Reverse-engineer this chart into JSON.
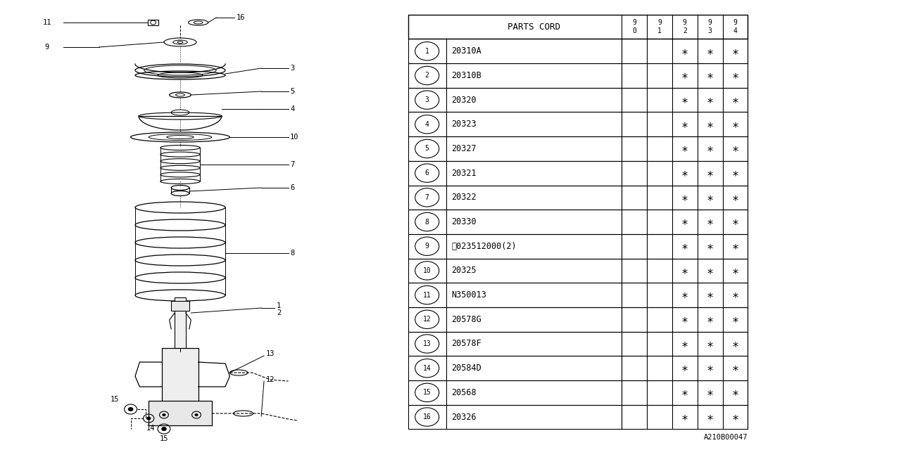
{
  "background_color": "#ffffff",
  "table_header": "PARTS CORD",
  "year_cols": [
    "9\n0",
    "9\n1",
    "9\n2",
    "9\n3",
    "9\n4"
  ],
  "parts": [
    {
      "num": "1",
      "code": "20310A",
      "marks": [
        false,
        false,
        true,
        true,
        true
      ]
    },
    {
      "num": "2",
      "code": "20310B",
      "marks": [
        false,
        false,
        true,
        true,
        true
      ]
    },
    {
      "num": "3",
      "code": "20320",
      "marks": [
        false,
        false,
        true,
        true,
        true
      ]
    },
    {
      "num": "4",
      "code": "20323",
      "marks": [
        false,
        false,
        true,
        true,
        true
      ]
    },
    {
      "num": "5",
      "code": "20327",
      "marks": [
        false,
        false,
        true,
        true,
        true
      ]
    },
    {
      "num": "6",
      "code": "20321",
      "marks": [
        false,
        false,
        true,
        true,
        true
      ]
    },
    {
      "num": "7",
      "code": "20322",
      "marks": [
        false,
        false,
        true,
        true,
        true
      ]
    },
    {
      "num": "8",
      "code": "20330",
      "marks": [
        false,
        false,
        true,
        true,
        true
      ]
    },
    {
      "num": "9",
      "code": "Ⓝ023512000(2)",
      "marks": [
        false,
        false,
        true,
        true,
        true
      ]
    },
    {
      "num": "10",
      "code": "20325",
      "marks": [
        false,
        false,
        true,
        true,
        true
      ]
    },
    {
      "num": "11",
      "code": "N350013",
      "marks": [
        false,
        false,
        true,
        true,
        true
      ]
    },
    {
      "num": "12",
      "code": "20578G",
      "marks": [
        false,
        false,
        true,
        true,
        true
      ]
    },
    {
      "num": "13",
      "code": "20578F",
      "marks": [
        false,
        false,
        true,
        true,
        true
      ]
    },
    {
      "num": "14",
      "code": "20584D",
      "marks": [
        false,
        false,
        true,
        true,
        true
      ]
    },
    {
      "num": "15",
      "code": "20568",
      "marks": [
        false,
        false,
        true,
        true,
        true
      ]
    },
    {
      "num": "16",
      "code": "20326",
      "marks": [
        false,
        false,
        true,
        true,
        true
      ]
    }
  ],
  "footer_code": "A210B00047",
  "line_color": "#000000",
  "text_color": "#000000",
  "mark_symbol": "∗"
}
